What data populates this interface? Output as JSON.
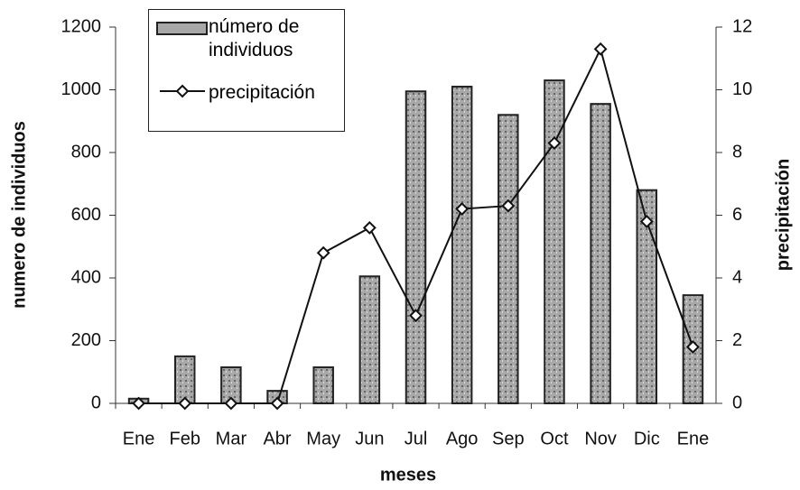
{
  "chart_data": {
    "type": "bar-line",
    "xlabel": "meses",
    "ylabel": "numero de individuos",
    "y2label": "precipitación",
    "categories": [
      "Ene",
      "Feb",
      "Mar",
      "Abr",
      "May",
      "Jun",
      "Jul",
      "Ago",
      "Sep",
      "Oct",
      "Nov",
      "Dic",
      "Ene"
    ],
    "series": [
      {
        "name": "número de individuos",
        "type": "bar",
        "color": "#a8a8a8",
        "values": [
          15,
          150,
          115,
          40,
          115,
          405,
          995,
          1010,
          920,
          1030,
          955,
          680,
          345
        ]
      },
      {
        "name": "precipitación",
        "type": "line",
        "axis": "y2",
        "color": "#111111",
        "values": [
          0,
          0,
          0,
          0,
          4.8,
          5.6,
          2.8,
          6.2,
          6.3,
          8.3,
          11.3,
          5.8,
          1.8
        ]
      }
    ],
    "ylim": [
      0,
      1200
    ],
    "yticks": [
      0,
      200,
      400,
      600,
      800,
      1000,
      1200
    ],
    "y2lim": [
      0,
      12
    ],
    "y2ticks": [
      0,
      2,
      4,
      6,
      8,
      10,
      12
    ],
    "grid": false,
    "legend": "upper left"
  }
}
